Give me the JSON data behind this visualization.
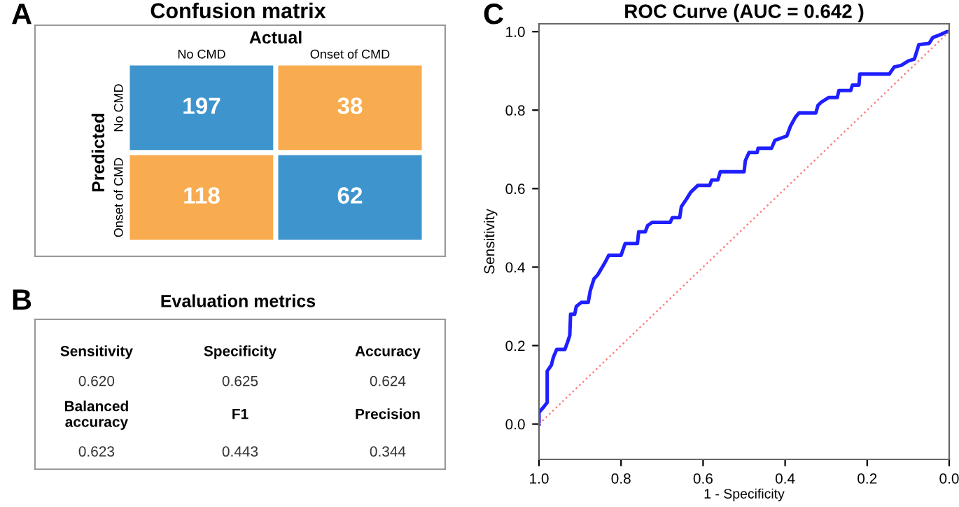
{
  "chart_data": [
    {
      "type": "heatmap",
      "title": "Confusion matrix",
      "xlabel": "Actual",
      "ylabel": "Predicted",
      "annotations": [
        "A"
      ],
      "categories": [
        "No CMD",
        "Onset of CMD"
      ],
      "y_categories": [
        "No CMD",
        "Onset of CMD"
      ],
      "cells": [
        [
          197,
          38
        ],
        [
          118,
          62
        ]
      ],
      "data_labels": true,
      "colors": [
        [
          "#3e95cd",
          "#f8ac4f"
        ],
        [
          "#f8ac4f",
          "#3e95cd"
        ]
      ]
    },
    {
      "type": "other",
      "title": "Evaluation metrics",
      "annotations": [
        "B",
        "Sensitivity",
        "0.620",
        "Specificity",
        "0.625",
        "Accuracy",
        "0.624",
        "Balanced\naccuracy",
        "0.623",
        "F1",
        "0.443",
        "Precision",
        "0.344"
      ]
    },
    {
      "type": "line",
      "title": "ROC Curve (AUC = 0.642 )",
      "xlabel": "1 - Specificity",
      "ylabel": "Sensitivity",
      "annotations": [
        "C"
      ],
      "xlim": [
        1.0,
        0.0
      ],
      "ylim": [
        -0.09,
        1.02
      ],
      "xticks": [
        {
          "value": 1,
          "label": "1.0"
        },
        0.8,
        0.6,
        0.4,
        0.2,
        {
          "value": 0,
          "label": "0.0"
        }
      ],
      "yticks": [
        {
          "value": 0,
          "label": "0.0"
        },
        0.2,
        0.4,
        0.6,
        0.8,
        {
          "value": 1,
          "label": "1.0"
        }
      ],
      "grid": false,
      "legend": false,
      "series": [
        {
          "color": "#1f1fff",
          "x": [
            1.0,
            1.0,
            0.989,
            0.98,
            0.98,
            0.97,
            0.965,
            0.957,
            0.937,
            0.93,
            0.925,
            0.923,
            0.913,
            0.909,
            0.897,
            0.88,
            0.875,
            0.866,
            0.857,
            0.84,
            0.83,
            0.8,
            0.79,
            0.76,
            0.757,
            0.741,
            0.735,
            0.724,
            0.68,
            0.675,
            0.657,
            0.653,
            0.64,
            0.63,
            0.613,
            0.584,
            0.579,
            0.564,
            0.558,
            0.5,
            0.497,
            0.488,
            0.468,
            0.466,
            0.433,
            0.425,
            0.396,
            0.387,
            0.375,
            0.366,
            0.325,
            0.32,
            0.311,
            0.294,
            0.273,
            0.269,
            0.24,
            0.236,
            0.22,
            0.218,
            0.146,
            0.134,
            0.117,
            0.1,
            0.085,
            0.074,
            0.049,
            0.04,
            0.02,
            0.006,
            0.0
          ],
          "values": [
            0.0,
            0.03,
            0.043,
            0.055,
            0.135,
            0.15,
            0.17,
            0.19,
            0.19,
            0.21,
            0.226,
            0.28,
            0.28,
            0.3,
            0.31,
            0.31,
            0.34,
            0.37,
            0.38,
            0.41,
            0.43,
            0.43,
            0.46,
            0.46,
            0.49,
            0.49,
            0.506,
            0.514,
            0.514,
            0.526,
            0.526,
            0.554,
            0.574,
            0.591,
            0.608,
            0.608,
            0.622,
            0.622,
            0.643,
            0.643,
            0.671,
            0.692,
            0.692,
            0.703,
            0.703,
            0.723,
            0.734,
            0.759,
            0.782,
            0.793,
            0.793,
            0.812,
            0.821,
            0.832,
            0.832,
            0.85,
            0.85,
            0.864,
            0.864,
            0.892,
            0.892,
            0.91,
            0.914,
            0.925,
            0.93,
            0.967,
            0.97,
            0.985,
            0.993,
            1.0,
            1.0
          ]
        },
        {
          "color": "#ff8080",
          "x": [
            1.0,
            0.0
          ],
          "values": [
            0.0,
            1.0
          ],
          "line_style": "dotted"
        }
      ]
    }
  ]
}
